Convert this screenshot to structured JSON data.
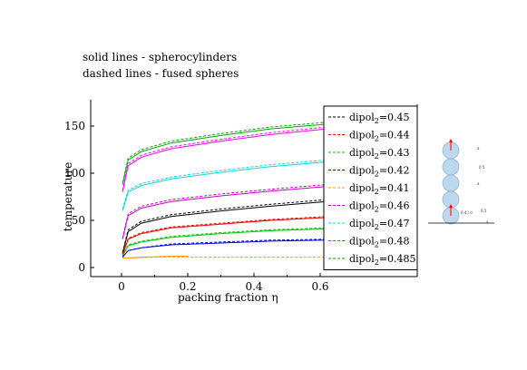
{
  "annotations": {
    "line1": "solid lines - spherocylinders",
    "line2": "dashed lines - fused spheres"
  },
  "chart_data": {
    "type": "line",
    "xlabel": "packing fraction η",
    "ylabel": "temperature",
    "xlim": [
      -0.03,
      0.68
    ],
    "ylim": [
      -3,
      160
    ],
    "xticks": [
      "0",
      "0.2",
      "0.4",
      "0.6"
    ],
    "yticks": [
      "0",
      "50",
      "100",
      "150"
    ],
    "grid": false,
    "legend_position": "right",
    "line_styles": {
      "solid": "spherocylinders",
      "dashed": "fused spheres"
    },
    "series": [
      {
        "label_main": "dipol",
        "label_sub": "2",
        "label_value": "=0.45",
        "color": "#000000",
        "solid": [
          [
            0.003,
            15
          ],
          [
            0.02,
            38
          ],
          [
            0.06,
            47
          ],
          [
            0.15,
            54
          ],
          [
            0.3,
            60
          ],
          [
            0.45,
            65
          ],
          [
            0.62,
            70
          ]
        ],
        "dashed": [
          [
            0.003,
            16
          ],
          [
            0.02,
            40
          ],
          [
            0.06,
            49
          ],
          [
            0.15,
            56
          ],
          [
            0.3,
            62
          ],
          [
            0.45,
            67
          ],
          [
            0.62,
            72
          ]
        ]
      },
      {
        "label_main": "dipol",
        "label_sub": "2",
        "label_value": "=0.44",
        "color": "#ff0000",
        "solid": [
          [
            0.003,
            13
          ],
          [
            0.02,
            30
          ],
          [
            0.06,
            36
          ],
          [
            0.15,
            42
          ],
          [
            0.3,
            46
          ],
          [
            0.45,
            50
          ],
          [
            0.62,
            53
          ]
        ],
        "dashed": [
          [
            0.003,
            14
          ],
          [
            0.02,
            31
          ],
          [
            0.06,
            37
          ],
          [
            0.15,
            43
          ],
          [
            0.3,
            47
          ],
          [
            0.45,
            51
          ],
          [
            0.62,
            54
          ]
        ]
      },
      {
        "label_main": "dipol",
        "label_sub": "2",
        "label_value": "=0.43",
        "color": "#00cc00",
        "solid": [
          [
            0.003,
            12
          ],
          [
            0.02,
            23
          ],
          [
            0.06,
            27
          ],
          [
            0.15,
            32
          ],
          [
            0.3,
            36
          ],
          [
            0.45,
            39
          ],
          [
            0.62,
            41
          ]
        ],
        "dashed": [
          [
            0.003,
            12
          ],
          [
            0.02,
            24
          ],
          [
            0.06,
            28
          ],
          [
            0.15,
            33
          ],
          [
            0.3,
            37
          ],
          [
            0.45,
            40
          ],
          [
            0.62,
            42
          ]
        ]
      },
      {
        "label_main": "dipol",
        "label_sub": "2",
        "label_value": "=0.42",
        "color": "#0000ff",
        "solid": [
          [
            0.003,
            11
          ],
          [
            0.02,
            18
          ],
          [
            0.06,
            21
          ],
          [
            0.15,
            24
          ],
          [
            0.3,
            26
          ],
          [
            0.45,
            28
          ],
          [
            0.62,
            29
          ]
        ],
        "dashed": [
          [
            0.003,
            11
          ],
          [
            0.02,
            18
          ],
          [
            0.06,
            21
          ],
          [
            0.15,
            25
          ],
          [
            0.3,
            27
          ],
          [
            0.45,
            29
          ],
          [
            0.62,
            30
          ]
        ]
      },
      {
        "label_main": "dipol",
        "label_sub": "2",
        "label_value": "=0.41",
        "color": "#ff9900",
        "solid": [
          [
            0.003,
            10
          ],
          [
            0.06,
            11
          ],
          [
            0.15,
            12
          ],
          [
            0.2,
            12
          ]
        ],
        "dashed": [
          [
            0.003,
            10
          ],
          [
            0.1,
            11
          ],
          [
            0.3,
            11
          ],
          [
            0.62,
            11
          ]
        ]
      },
      {
        "label_main": "dipol",
        "label_sub": "2",
        "label_value": "=0.46",
        "color": "#cc00cc",
        "solid": [
          [
            0.003,
            30
          ],
          [
            0.02,
            55
          ],
          [
            0.06,
            63
          ],
          [
            0.15,
            70
          ],
          [
            0.3,
            76
          ],
          [
            0.45,
            81
          ],
          [
            0.62,
            86
          ]
        ],
        "dashed": [
          [
            0.003,
            31
          ],
          [
            0.02,
            57
          ],
          [
            0.06,
            65
          ],
          [
            0.15,
            72
          ],
          [
            0.3,
            78
          ],
          [
            0.45,
            83
          ],
          [
            0.62,
            88
          ]
        ]
      },
      {
        "label_main": "dipol",
        "label_sub": "2",
        "label_value": "=0.47",
        "color": "#00dddd",
        "solid": [
          [
            0.003,
            60
          ],
          [
            0.02,
            80
          ],
          [
            0.06,
            87
          ],
          [
            0.15,
            94
          ],
          [
            0.3,
            101
          ],
          [
            0.45,
            107
          ],
          [
            0.62,
            112
          ]
        ],
        "dashed": [
          [
            0.003,
            62
          ],
          [
            0.02,
            82
          ],
          [
            0.06,
            89
          ],
          [
            0.15,
            96
          ],
          [
            0.3,
            103
          ],
          [
            0.45,
            109
          ],
          [
            0.62,
            114
          ]
        ]
      },
      {
        "label_main": "dipol",
        "label_sub": "2",
        "label_value": "=0.48",
        "color": "#ff00ff",
        "solid": [
          [
            0.003,
            80
          ],
          [
            0.02,
            108
          ],
          [
            0.06,
            117
          ],
          [
            0.15,
            126
          ],
          [
            0.3,
            134
          ],
          [
            0.45,
            141
          ],
          [
            0.62,
            147
          ]
        ],
        "dashed": [
          [
            0.003,
            82
          ],
          [
            0.02,
            110
          ],
          [
            0.06,
            119
          ],
          [
            0.15,
            128
          ],
          [
            0.3,
            136
          ],
          [
            0.45,
            143
          ],
          [
            0.62,
            149
          ]
        ]
      },
      {
        "label_main": "dipol",
        "label_sub": "2",
        "label_value": "=0.485",
        "color": "#00aa00",
        "solid": [
          [
            0.003,
            88
          ],
          [
            0.02,
            114
          ],
          [
            0.06,
            123
          ],
          [
            0.15,
            132
          ],
          [
            0.3,
            140
          ],
          [
            0.45,
            147
          ],
          [
            0.62,
            152
          ]
        ],
        "dashed": [
          [
            0.003,
            90
          ],
          [
            0.02,
            116
          ],
          [
            0.06,
            125
          ],
          [
            0.15,
            134
          ],
          [
            0.3,
            142
          ],
          [
            0.45,
            149
          ],
          [
            0.62,
            154
          ]
        ]
      }
    ]
  },
  "inset": {
    "labels": [
      "a",
      "0.5",
      "a",
      "0.5",
      "0.4 / σ",
      "a"
    ],
    "colors": {
      "sphere": "#bcd7ee",
      "sphere_edge": "#88b0d4",
      "arrow": "#ff0000"
    }
  }
}
